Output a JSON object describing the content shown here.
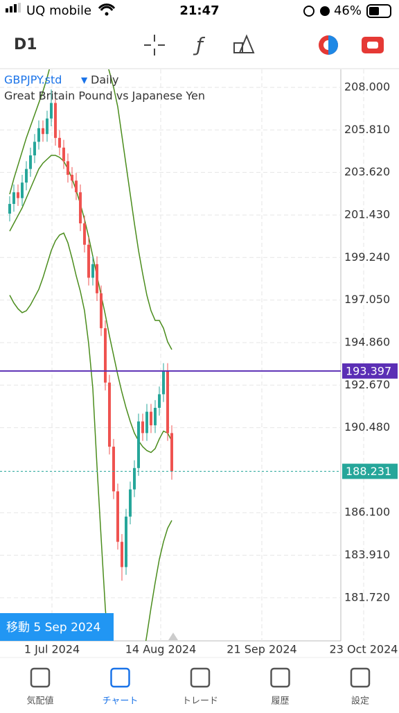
{
  "status_bar": {
    "carrier": "UQ mobile",
    "time": "21:47",
    "battery": "46%"
  },
  "toolbar": {
    "period": "D1"
  },
  "chart_data": {
    "type": "candlestick",
    "symbol": "GBPJPY.std",
    "period": "Daily",
    "description": "Great Britain Pound vs Japanese Yen",
    "ylim": [
      179.5,
      208.93
    ],
    "yticks": [
      {
        "value": 208,
        "label": "208.000"
      },
      {
        "value": 205.81,
        "label": "205.810"
      },
      {
        "value": 203.62,
        "label": "203.620"
      },
      {
        "value": 201.43,
        "label": "201.430"
      },
      {
        "value": 199.24,
        "label": "199.240"
      },
      {
        "value": 197.05,
        "label": "197.050"
      },
      {
        "value": 194.86,
        "label": "194.860"
      },
      {
        "value": 192.67,
        "label": "192.670"
      },
      {
        "value": 190.48,
        "label": "190.480"
      },
      {
        "value": 186.1,
        "label": "186.100"
      },
      {
        "value": 183.91,
        "label": "183.910"
      },
      {
        "value": 181.72,
        "label": "181.720"
      }
    ],
    "date_labels": [
      "1 Jul 2024",
      "14 Aug 2024",
      "21 Sep 2024",
      "23 Oct 2024"
    ],
    "bull_color": "#26a69a",
    "bear_color": "#ef5350",
    "band_color": "#4a8c1c",
    "ohlc": [
      [
        201.5,
        202.4,
        201.1,
        202.0
      ],
      [
        202.0,
        203.0,
        201.6,
        202.6
      ],
      [
        202.6,
        203.0,
        201.9,
        202.3
      ],
      [
        202.3,
        203.5,
        201.9,
        203.1
      ],
      [
        203.1,
        204.2,
        202.7,
        203.8
      ],
      [
        203.8,
        204.9,
        203.4,
        204.5
      ],
      [
        204.5,
        205.6,
        204.1,
        205.2
      ],
      [
        205.2,
        206.3,
        204.8,
        205.9
      ],
      [
        205.9,
        206.3,
        205.2,
        205.6
      ],
      [
        205.6,
        206.8,
        205.2,
        206.4
      ],
      [
        206.4,
        207.9,
        206.0,
        207.2
      ],
      [
        207.2,
        207.6,
        205.0,
        205.4
      ],
      [
        205.4,
        205.8,
        204.5,
        204.9
      ],
      [
        204.9,
        205.3,
        203.8,
        204.2
      ],
      [
        204.2,
        204.6,
        203.1,
        203.5
      ],
      [
        203.5,
        203.9,
        202.8,
        203.2
      ],
      [
        203.2,
        203.6,
        202.2,
        202.6
      ],
      [
        202.6,
        203.0,
        200.6,
        201.0
      ],
      [
        201.0,
        201.4,
        199.5,
        199.9
      ],
      [
        199.9,
        200.3,
        197.8,
        198.2
      ],
      [
        198.2,
        199.3,
        197.8,
        198.9
      ],
      [
        198.9,
        199.3,
        197.0,
        197.4
      ],
      [
        197.4,
        197.8,
        195.2,
        195.6
      ],
      [
        195.6,
        196.0,
        192.4,
        192.8
      ],
      [
        192.8,
        193.2,
        189.1,
        189.5
      ],
      [
        189.5,
        189.9,
        186.8,
        187.2
      ],
      [
        187.2,
        187.6,
        184.2,
        184.6
      ],
      [
        184.6,
        185.0,
        182.6,
        183.3
      ],
      [
        183.3,
        186.3,
        182.9,
        185.9
      ],
      [
        185.9,
        187.7,
        185.5,
        187.3
      ],
      [
        187.3,
        188.8,
        186.9,
        188.4
      ],
      [
        188.4,
        191.2,
        188.0,
        190.8
      ],
      [
        190.8,
        191.2,
        189.8,
        190.2
      ],
      [
        190.2,
        191.7,
        189.8,
        191.3
      ],
      [
        191.3,
        191.7,
        190.2,
        190.6
      ],
      [
        190.6,
        191.9,
        190.2,
        191.5
      ],
      [
        191.5,
        192.6,
        191.1,
        192.2
      ],
      [
        192.2,
        193.8,
        191.8,
        193.4
      ],
      [
        193.4,
        193.8,
        189.8,
        190.2
      ],
      [
        190.2,
        190.6,
        187.8,
        188.231
      ]
    ],
    "bands": {
      "upper": [
        202.5,
        203.3,
        204.0,
        204.7,
        205.4,
        206.0,
        206.6,
        207.2,
        207.8,
        208.5,
        209.3,
        209.8,
        210.2,
        210.4,
        210.6,
        210.8,
        211,
        211,
        211,
        211,
        210.8,
        210.5,
        210.2,
        209.5,
        208.8,
        208,
        207,
        205.5,
        204.0,
        202.5,
        201.0,
        199.6,
        198.4,
        197.3,
        196.5,
        196.0,
        196.0,
        195.6,
        194.9,
        194.5
      ],
      "middle": [
        200.6,
        201.0,
        201.4,
        201.8,
        202.3,
        202.8,
        203.3,
        203.8,
        204.1,
        204.3,
        204.5,
        204.5,
        204.4,
        204.2,
        203.8,
        203.3,
        202.7,
        202.0,
        201.2,
        200.3,
        199.3,
        198.3,
        197.3,
        196.3,
        195.2,
        194.2,
        193.2,
        192.3,
        191.5,
        190.8,
        190.2,
        189.8,
        189.5,
        189.3,
        189.2,
        189.4,
        189.9,
        190.3,
        190.2,
        189.8
      ],
      "lower": [
        197.3,
        196.9,
        196.6,
        196.4,
        196.5,
        196.8,
        197.2,
        197.6,
        198.2,
        198.9,
        199.6,
        200.1,
        200.4,
        200.5,
        200.0,
        199.2,
        198.3,
        197.5,
        196.5,
        194.8,
        192.5,
        188.5,
        184.8,
        181.2,
        178.5,
        176.5,
        175.5,
        175.0,
        175.0,
        175.5,
        176.5,
        177.5,
        178.5,
        179.8,
        181.2,
        182.5,
        183.7,
        184.6,
        185.3,
        185.7
      ]
    },
    "price_lines": [
      {
        "value": 193.397,
        "color": "#5b2fb5"
      },
      {
        "value": 188.231,
        "color": "#26a69a"
      }
    ],
    "crosshair_label": "移動 5 Sep 2024"
  },
  "tab_bar": {
    "tabs": [
      "気配値",
      "チャート",
      "トレード",
      "履歴",
      "設定"
    ],
    "active": 1
  }
}
